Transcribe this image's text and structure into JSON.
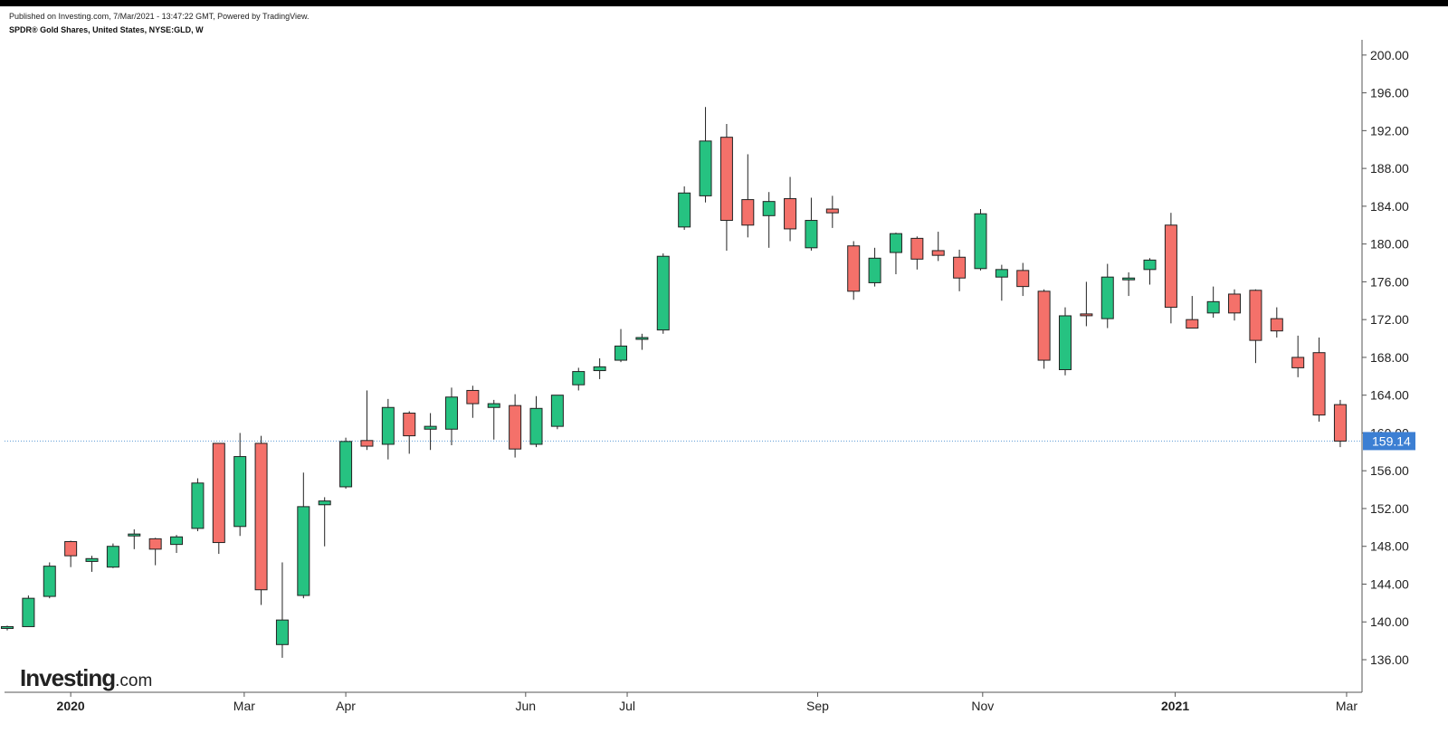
{
  "header": {
    "published": "Published on Investing.com, 7/Mar/2021 - 13:47:22 GMT, Powered by TradingView.",
    "symbol": "SPDR® Gold Shares, United States, NYSE:GLD, W"
  },
  "logo": {
    "brand": "Investing",
    "suffix": ".com"
  },
  "colors": {
    "up": "#26c281",
    "down": "#f4716a",
    "outline": "#222222",
    "price_line": "#5b9bd5",
    "price_tag": "#3c7fd3",
    "axis": "#555555"
  },
  "chart_data": {
    "type": "candlestick",
    "interval": "W",
    "yaxis": {
      "min": 134.5,
      "max": 202.0,
      "ticks": [
        "136.00",
        "140.00",
        "144.00",
        "148.00",
        "152.00",
        "156.00",
        "160.00",
        "164.00",
        "168.00",
        "172.00",
        "176.00",
        "180.00",
        "184.00",
        "188.00",
        "192.00",
        "196.00",
        "200.00"
      ],
      "position": "right"
    },
    "xaxis": {
      "labels": [
        {
          "text": "2020",
          "bold": true,
          "index": 3
        },
        {
          "text": "Mar",
          "bold": false,
          "index": 11.2
        },
        {
          "text": "Apr",
          "bold": false,
          "index": 16
        },
        {
          "text": "Jun",
          "bold": false,
          "index": 24.5
        },
        {
          "text": "Jul",
          "bold": false,
          "index": 29.3
        },
        {
          "text": "Sep",
          "bold": false,
          "index": 38.3
        },
        {
          "text": "Nov",
          "bold": false,
          "index": 46.1
        },
        {
          "text": "2021",
          "bold": true,
          "index": 55.2
        },
        {
          "text": "Mar",
          "bold": false,
          "index": 63.3
        }
      ]
    },
    "last_price": {
      "value": 159.14,
      "label": "159.14"
    },
    "candles": [
      {
        "o": 139.4,
        "h": 139.6,
        "l": 139.1,
        "c": 139.5
      },
      {
        "o": 139.5,
        "h": 142.8,
        "l": 139.5,
        "c": 142.5
      },
      {
        "o": 142.7,
        "h": 146.3,
        "l": 142.5,
        "c": 145.9
      },
      {
        "o": 148.5,
        "h": 148.6,
        "l": 145.8,
        "c": 147.0
      },
      {
        "o": 146.4,
        "h": 147.0,
        "l": 145.3,
        "c": 146.7
      },
      {
        "o": 145.8,
        "h": 148.3,
        "l": 145.7,
        "c": 148.0
      },
      {
        "o": 149.1,
        "h": 149.8,
        "l": 147.7,
        "c": 149.3
      },
      {
        "o": 148.8,
        "h": 148.9,
        "l": 146.0,
        "c": 147.7
      },
      {
        "o": 148.2,
        "h": 149.2,
        "l": 147.3,
        "c": 149.0
      },
      {
        "o": 149.9,
        "h": 155.2,
        "l": 149.6,
        "c": 154.7
      },
      {
        "o": 158.9,
        "h": 158.9,
        "l": 147.2,
        "c": 148.4
      },
      {
        "o": 150.1,
        "h": 160.0,
        "l": 149.1,
        "c": 157.5
      },
      {
        "o": 158.9,
        "h": 159.7,
        "l": 141.8,
        "c": 143.4
      },
      {
        "o": 137.6,
        "h": 146.3,
        "l": 136.2,
        "c": 140.2
      },
      {
        "o": 142.8,
        "h": 155.8,
        "l": 142.5,
        "c": 152.2
      },
      {
        "o": 152.4,
        "h": 153.2,
        "l": 148.0,
        "c": 152.8
      },
      {
        "o": 154.3,
        "h": 159.5,
        "l": 154.1,
        "c": 159.1
      },
      {
        "o": 159.2,
        "h": 164.5,
        "l": 158.2,
        "c": 158.6
      },
      {
        "o": 158.8,
        "h": 163.6,
        "l": 157.2,
        "c": 162.7
      },
      {
        "o": 162.1,
        "h": 162.3,
        "l": 157.8,
        "c": 159.7
      },
      {
        "o": 160.4,
        "h": 162.1,
        "l": 158.2,
        "c": 160.7
      },
      {
        "o": 160.4,
        "h": 164.8,
        "l": 158.7,
        "c": 163.8
      },
      {
        "o": 164.5,
        "h": 165.0,
        "l": 161.6,
        "c": 163.1
      },
      {
        "o": 162.7,
        "h": 163.5,
        "l": 159.3,
        "c": 163.1
      },
      {
        "o": 162.9,
        "h": 164.1,
        "l": 157.4,
        "c": 158.3
      },
      {
        "o": 158.8,
        "h": 163.9,
        "l": 158.5,
        "c": 162.6
      },
      {
        "o": 160.7,
        "h": 164.0,
        "l": 160.4,
        "c": 164.0
      },
      {
        "o": 165.1,
        "h": 166.9,
        "l": 164.5,
        "c": 166.5
      },
      {
        "o": 166.6,
        "h": 167.9,
        "l": 165.7,
        "c": 167.0
      },
      {
        "o": 167.7,
        "h": 171.0,
        "l": 167.5,
        "c": 169.2
      },
      {
        "o": 170.1,
        "h": 170.5,
        "l": 168.8,
        "c": 170.1
      },
      {
        "o": 170.9,
        "h": 179.0,
        "l": 170.5,
        "c": 178.7
      },
      {
        "o": 181.8,
        "h": 186.1,
        "l": 181.5,
        "c": 185.4
      },
      {
        "o": 185.1,
        "h": 194.5,
        "l": 184.4,
        "c": 190.9
      },
      {
        "o": 191.3,
        "h": 192.7,
        "l": 179.3,
        "c": 182.5
      },
      {
        "o": 184.7,
        "h": 189.5,
        "l": 180.7,
        "c": 182.0
      },
      {
        "o": 183.0,
        "h": 185.5,
        "l": 179.6,
        "c": 184.5
      },
      {
        "o": 184.8,
        "h": 187.1,
        "l": 180.3,
        "c": 181.6
      },
      {
        "o": 179.6,
        "h": 184.9,
        "l": 179.3,
        "c": 182.5
      },
      {
        "o": 183.7,
        "h": 185.1,
        "l": 181.7,
        "c": 183.3
      },
      {
        "o": 179.8,
        "h": 180.3,
        "l": 174.1,
        "c": 175.0
      },
      {
        "o": 175.9,
        "h": 179.6,
        "l": 175.5,
        "c": 178.5
      },
      {
        "o": 179.1,
        "h": 181.2,
        "l": 176.8,
        "c": 181.1
      },
      {
        "o": 180.6,
        "h": 180.8,
        "l": 177.3,
        "c": 178.4
      },
      {
        "o": 179.3,
        "h": 181.3,
        "l": 178.2,
        "c": 178.8
      },
      {
        "o": 178.6,
        "h": 179.4,
        "l": 175.0,
        "c": 176.4
      },
      {
        "o": 177.4,
        "h": 183.7,
        "l": 177.2,
        "c": 183.2
      },
      {
        "o": 176.5,
        "h": 177.8,
        "l": 174.0,
        "c": 177.3
      },
      {
        "o": 177.2,
        "h": 178.0,
        "l": 174.5,
        "c": 175.5
      },
      {
        "o": 175.0,
        "h": 175.2,
        "l": 166.8,
        "c": 167.7
      },
      {
        "o": 166.7,
        "h": 173.3,
        "l": 166.1,
        "c": 172.4
      },
      {
        "o": 172.6,
        "h": 176.0,
        "l": 171.3,
        "c": 172.5
      },
      {
        "o": 172.1,
        "h": 177.9,
        "l": 171.1,
        "c": 176.5
      },
      {
        "o": 176.4,
        "h": 177.0,
        "l": 174.5,
        "c": 176.4
      },
      {
        "o": 177.3,
        "h": 178.5,
        "l": 175.7,
        "c": 178.3
      },
      {
        "o": 182.0,
        "h": 183.3,
        "l": 171.6,
        "c": 173.3
      },
      {
        "o": 172.0,
        "h": 174.5,
        "l": 171.2,
        "c": 171.1
      },
      {
        "o": 172.7,
        "h": 175.5,
        "l": 172.2,
        "c": 173.9
      },
      {
        "o": 174.7,
        "h": 175.2,
        "l": 171.9,
        "c": 172.7
      },
      {
        "o": 175.1,
        "h": 175.2,
        "l": 167.4,
        "c": 169.8
      },
      {
        "o": 172.1,
        "h": 173.3,
        "l": 170.1,
        "c": 170.8
      },
      {
        "o": 168.0,
        "h": 170.3,
        "l": 165.9,
        "c": 166.9
      },
      {
        "o": 168.5,
        "h": 170.1,
        "l": 161.2,
        "c": 161.9
      },
      {
        "o": 163.0,
        "h": 163.5,
        "l": 158.5,
        "c": 159.14
      }
    ]
  }
}
